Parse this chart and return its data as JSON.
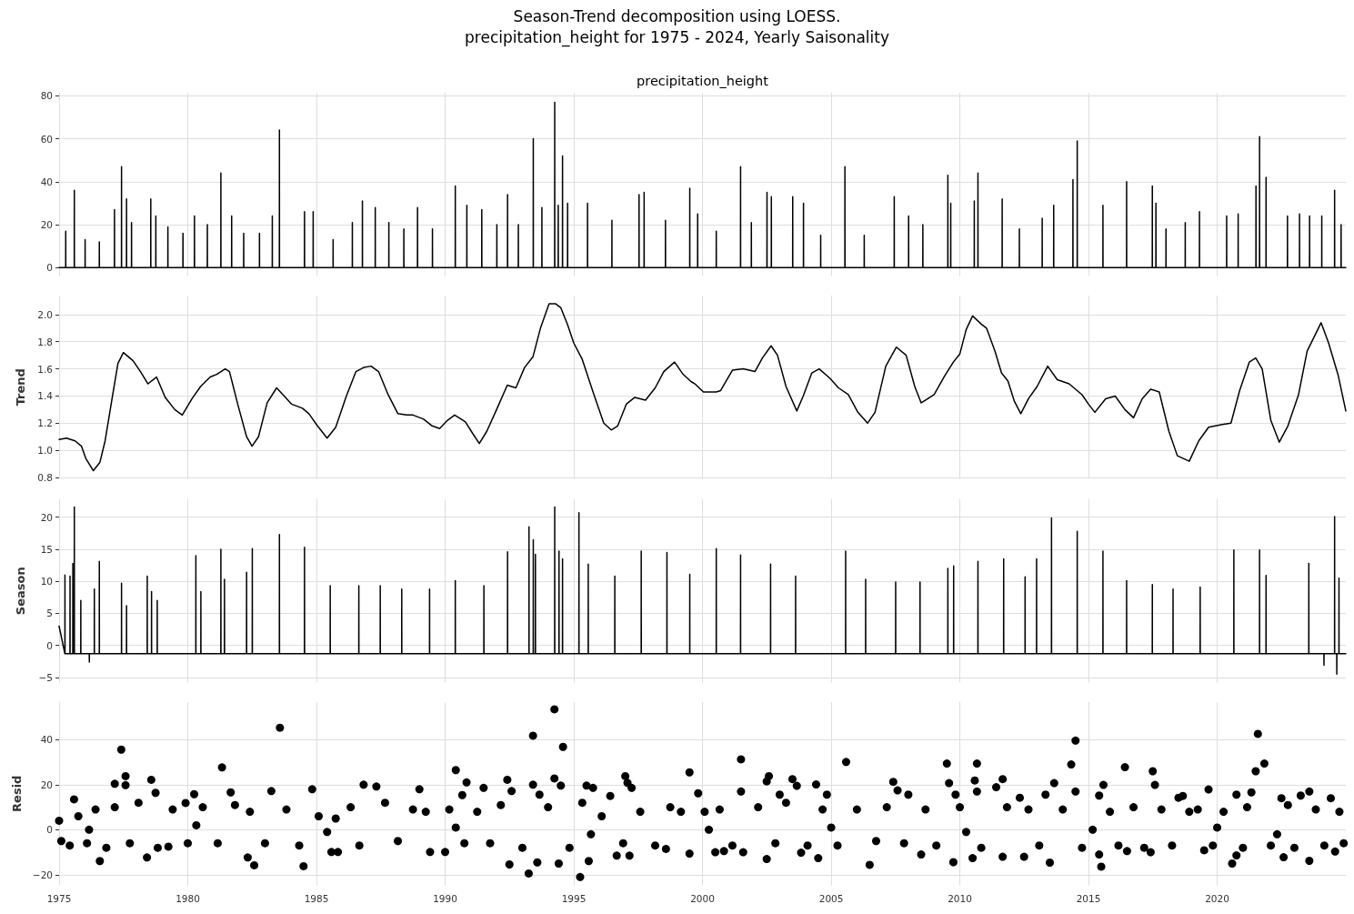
{
  "chart_data": [
    {
      "type": "line",
      "title": "Season-Trend decomposition using LOESS.",
      "subtitle": "precipitation_height for 1975 - 2024, Yearly Saisonality",
      "annotations": [
        "precipitation_height"
      ],
      "color": "#000000",
      "x": [
        "1975-01-01",
        "1975-04-04",
        "1975-04-05",
        "1975-04-06",
        "1975-08-04",
        "1975-08-05",
        "1975-08-06",
        "1976-01-04",
        "1976-01-05",
        "1976-01-06",
        "1976-07-24",
        "1976-07-25",
        "1976-07-26",
        "1977-02-24",
        "1977-02-25",
        "1977-02-26",
        "1977-06-04",
        "1977-06-05",
        "1977-06-06",
        "1977-08-14",
        "1977-08-15",
        "1977-08-16",
        "1977-10-24",
        "1977-10-25",
        "1977-10-26",
        "1978-07-24",
        "1978-07-25",
        "1978-07-26",
        "1978-10-04",
        "1978-10-05",
        "1978-10-06",
        "1979-03-24",
        "1979-03-25",
        "1979-03-26",
        "1979-10-24",
        "1979-10-25",
        "1979-10-26",
        "1980-04-04",
        "1980-04-05",
        "1980-04-06",
        "1980-10-04",
        "1980-10-05",
        "1980-10-06",
        "1981-04-14",
        "1981-04-15",
        "1981-04-16",
        "1981-09-14",
        "1981-09-15",
        "1981-09-16",
        "1982-03-04",
        "1982-03-05",
        "1982-03-06",
        "1982-10-14",
        "1982-10-15",
        "1982-10-16",
        "1983-04-14",
        "1983-04-15",
        "1983-04-16",
        "1983-07-24",
        "1983-07-25",
        "1983-07-26",
        "1984-07-14",
        "1984-07-15",
        "1984-07-16",
        "1984-11-14",
        "1984-11-15",
        "1984-11-16",
        "1985-08-24",
        "1985-08-25",
        "1985-08-26",
        "1986-05-24",
        "1986-05-25",
        "1986-05-26",
        "1986-10-14",
        "1986-10-15",
        "1986-10-16",
        "1987-04-14",
        "1987-04-15",
        "1987-04-16",
        "1987-10-24",
        "1987-10-25",
        "1987-10-26",
        "1988-05-24",
        "1988-05-25",
        "1988-05-26",
        "1988-12-04",
        "1988-12-05",
        "1988-12-06",
        "1989-07-04",
        "1989-07-05",
        "1989-07-06",
        "1990-05-24",
        "1990-05-25",
        "1990-05-26",
        "1990-11-04",
        "1990-11-05",
        "1990-11-06",
        "1991-06-04",
        "1991-06-05",
        "1991-06-06",
        "1992-01-04",
        "1992-01-05",
        "1992-01-06",
        "1992-06-04",
        "1992-06-05",
        "1992-06-06",
        "1992-11-04",
        "1992-11-05",
        "1992-11-06",
        "1993-06-04",
        "1993-06-05",
        "1993-06-06",
        "1993-10-04",
        "1993-10-05",
        "1993-10-06",
        "1994-04-04",
        "1994-04-05",
        "1994-04-06",
        "1994-05-24",
        "1994-05-25",
        "1994-05-26",
        "1994-07-24",
        "1994-07-25",
        "1994-07-26",
        "1994-10-04",
        "1994-10-05",
        "1994-10-06",
        "1995-07-14",
        "1995-07-15",
        "1995-07-16",
        "1996-06-24",
        "1996-06-25",
        "1996-06-26",
        "1997-07-14",
        "1997-07-15",
        "1997-07-16",
        "1997-09-24",
        "1997-09-25",
        "1997-09-26",
        "1998-07-24",
        "1998-07-25",
        "1998-07-26",
        "1999-07-04",
        "1999-07-05",
        "1999-07-06",
        "1999-10-24",
        "1999-10-25",
        "1999-10-26",
        "2000-07-14",
        "2000-07-15",
        "2000-07-16",
        "2001-06-24",
        "2001-06-25",
        "2001-06-26",
        "2001-11-24",
        "2001-11-25",
        "2001-11-26",
        "2002-07-04",
        "2002-07-05",
        "2002-07-06",
        "2002-09-04",
        "2002-09-05",
        "2002-09-06",
        "2003-07-04",
        "2003-07-05",
        "2003-07-06",
        "2003-12-04",
        "2003-12-05",
        "2003-12-06",
        "2004-08-04",
        "2004-08-05",
        "2004-08-06",
        "2005-07-14",
        "2005-07-15",
        "2005-07-16",
        "2006-04-14",
        "2006-04-15",
        "2006-04-16",
        "2007-06-14",
        "2007-06-15",
        "2007-06-16",
        "2008-01-04",
        "2008-01-05",
        "2008-01-06",
        "2008-07-24",
        "2008-07-25",
        "2008-07-26",
        "2009-07-14",
        "2009-07-15",
        "2009-07-16",
        "2009-08-24",
        "2009-08-25",
        "2009-08-26",
        "2010-07-24",
        "2010-07-25",
        "2010-07-26",
        "2010-09-14",
        "2010-09-15",
        "2010-09-16",
        "2011-08-24",
        "2011-08-25",
        "2011-08-26",
        "2012-04-24",
        "2012-04-25",
        "2012-04-26",
        "2013-03-14",
        "2013-03-15",
        "2013-03-16",
        "2013-08-24",
        "2013-08-25",
        "2013-08-26",
        "2014-05-24",
        "2014-05-25",
        "2014-05-26",
        "2014-07-24",
        "2014-07-25",
        "2014-07-26",
        "2015-07-24",
        "2015-07-25",
        "2015-07-26",
        "2016-06-24",
        "2016-06-25",
        "2016-06-26",
        "2017-06-24",
        "2017-06-25",
        "2017-06-26",
        "2017-08-14",
        "2017-08-15",
        "2017-08-16",
        "2018-01-04",
        "2018-01-05",
        "2018-01-06",
        "2018-10-04",
        "2018-10-05",
        "2018-10-06",
        "2019-04-24",
        "2019-04-25",
        "2019-04-26",
        "2020-05-14",
        "2020-05-15",
        "2020-05-16",
        "2020-10-24",
        "2020-10-25",
        "2020-10-26",
        "2021-07-04",
        "2021-07-05",
        "2021-07-06",
        "2021-08-24",
        "2021-08-25",
        "2021-08-26",
        "2021-11-24",
        "2021-11-25",
        "2021-11-26",
        "2022-09-24",
        "2022-09-25",
        "2022-09-26",
        "2023-03-14",
        "2023-03-15",
        "2023-03-16",
        "2023-08-04",
        "2023-08-05",
        "2023-08-06",
        "2024-01-24",
        "2024-01-25",
        "2024-01-26",
        "2024-07-24",
        "2024-07-25",
        "2024-07-26",
        "2024-10-24",
        "2024-10-25",
        "2024-10-26",
        "2024-12-31"
      ],
      "values": [
        0,
        0,
        17,
        0,
        0,
        36,
        0,
        0,
        13,
        0,
        0,
        12,
        0,
        0,
        27,
        0,
        0,
        47,
        0,
        0,
        32,
        0,
        0,
        21,
        0,
        0,
        32,
        0,
        0,
        24,
        0,
        0,
        19,
        0,
        0,
        16,
        0,
        0,
        24,
        0,
        0,
        20,
        0,
        0,
        44,
        0,
        0,
        24,
        0,
        0,
        16,
        0,
        0,
        16,
        0,
        0,
        24,
        0,
        0,
        64,
        0,
        0,
        26,
        0,
        0,
        26,
        0,
        0,
        13,
        0,
        0,
        21,
        0,
        0,
        31,
        0,
        0,
        28,
        0,
        0,
        21,
        0,
        0,
        18,
        0,
        0,
        28,
        0,
        0,
        18,
        0,
        0,
        38,
        0,
        0,
        29,
        0,
        0,
        27,
        0,
        0,
        20,
        0,
        0,
        34,
        0,
        0,
        20,
        0,
        0,
        60,
        0,
        0,
        28,
        0,
        0,
        77,
        0,
        0,
        29,
        0,
        0,
        52,
        0,
        0,
        30,
        0,
        0,
        30,
        0,
        0,
        22,
        0,
        0,
        34,
        0,
        0,
        35,
        0,
        0,
        22,
        0,
        0,
        37,
        0,
        0,
        25,
        0,
        0,
        17,
        0,
        0,
        47,
        0,
        0,
        21,
        0,
        0,
        35,
        0,
        0,
        33,
        0,
        0,
        33,
        0,
        0,
        30,
        0,
        0,
        15,
        0,
        0,
        47,
        0,
        0,
        15,
        0,
        0,
        33,
        0,
        0,
        24,
        0,
        0,
        20,
        0,
        0,
        43,
        0,
        0,
        30,
        0,
        0,
        31,
        0,
        0,
        44,
        0,
        0,
        32,
        0,
        0,
        18,
        0,
        0,
        23,
        0,
        0,
        29,
        0,
        0,
        41,
        0,
        0,
        59,
        0,
        0,
        29,
        0,
        0,
        40,
        0,
        0,
        38,
        0,
        0,
        30,
        0,
        0,
        18,
        0,
        0,
        21,
        0,
        0,
        26,
        0,
        0,
        24,
        0,
        0,
        25,
        0,
        0,
        38,
        0,
        0,
        61,
        0,
        0,
        42,
        0,
        0,
        24,
        0,
        0,
        25,
        0,
        0,
        24,
        0,
        0,
        24,
        0,
        0,
        36,
        0,
        0,
        20,
        0,
        0
      ],
      "xlim": [
        "1975-01-01",
        "2024-12-31"
      ],
      "xticks": [
        "1975",
        "1980",
        "1985",
        "1990",
        "1995",
        "2000",
        "2005",
        "2010",
        "2015",
        "2020"
      ],
      "ylim": [
        -3.9,
        81.4
      ],
      "yticks": [
        0,
        20,
        40,
        60,
        80
      ],
      "grid": true,
      "tick_labels": "y"
    },
    {
      "type": "line",
      "ylabel": "Trend",
      "color": "#000000",
      "x": [
        "1975-01-01",
        "1975-04-15",
        "1975-08-15",
        "1975-11-15",
        "1976-01-15",
        "1976-05-01",
        "1976-08-01",
        "1976-10-15",
        "1977-01-15",
        "1977-04-15",
        "1977-07-01",
        "1977-11-15",
        "1978-03-01",
        "1978-06-15",
        "1978-10-15",
        "1979-02-15",
        "1979-07-01",
        "1979-10-15",
        "1980-03-01",
        "1980-07-01",
        "1980-11-15",
        "1981-02-15",
        "1981-06-15",
        "1981-08-15",
        "1981-12-15",
        "1982-04-15",
        "1982-07-01",
        "1982-10-01",
        "1983-02-01",
        "1983-06-15",
        "1983-10-01",
        "1984-01-15",
        "1984-06-15",
        "1984-09-15",
        "1985-01-15",
        "1985-06-01",
        "1985-10-01",
        "1986-03-01",
        "1986-07-15",
        "1986-11-01",
        "1987-02-15",
        "1987-06-01",
        "1987-10-15",
        "1988-03-01",
        "1988-07-01",
        "1988-10-01",
        "1989-03-01",
        "1989-07-01",
        "1989-10-15",
        "1990-02-01",
        "1990-05-15",
        "1990-10-15",
        "1991-02-01",
        "1991-05-01",
        "1991-08-15",
        "1992-01-01",
        "1992-06-01",
        "1992-10-01",
        "1993-02-01",
        "1993-06-01",
        "1993-09-15",
        "1994-01-15",
        "1994-04-15",
        "1994-07-01",
        "1994-10-01",
        "1995-01-01",
        "1995-05-01",
        "1995-10-01",
        "1996-03-01",
        "1996-06-15",
        "1996-09-15",
        "1997-01-15",
        "1997-05-15",
        "1997-10-15",
        "1998-03-01",
        "1998-07-01",
        "1998-12-01",
        "1999-04-01",
        "1999-07-15",
        "1999-09-15",
        "2000-01-15",
        "2000-07-15",
        "2000-09-15",
        "2001-03-01",
        "2001-08-01",
        "2002-01-15",
        "2002-05-01",
        "2002-09-01",
        "2002-12-01",
        "2003-04-01",
        "2003-09-01",
        "2003-12-01",
        "2004-04-01",
        "2004-07-15",
        "2004-12-15",
        "2005-04-15",
        "2005-09-01",
        "2006-01-15",
        "2006-06-01",
        "2006-09-15",
        "2007-02-15",
        "2007-07-15",
        "2007-12-01",
        "2008-04-01",
        "2008-07-01",
        "2009-01-01",
        "2009-06-01",
        "2009-10-01",
        "2010-01-01",
        "2010-04-01",
        "2010-07-01",
        "2010-11-01",
        "2011-01-15",
        "2011-05-15",
        "2011-08-15",
        "2011-11-15",
        "2012-02-15",
        "2012-05-15",
        "2012-09-01",
        "2013-01-01",
        "2013-06-01",
        "2013-10-15",
        "2014-04-01",
        "2014-10-01",
        "2015-01-01",
        "2015-04-01",
        "2015-09-01",
        "2016-01-15",
        "2016-06-01",
        "2016-10-01",
        "2017-02-01",
        "2017-06-01",
        "2017-10-01",
        "2018-02-15",
        "2018-06-15",
        "2018-12-01",
        "2019-04-15",
        "2019-09-01",
        "2020-03-15",
        "2020-07-15",
        "2020-11-15",
        "2021-04-01",
        "2021-07-01",
        "2021-10-01",
        "2022-02-01",
        "2022-06-01",
        "2022-10-01",
        "2023-03-01",
        "2023-07-01",
        "2024-01-15",
        "2024-05-01",
        "2024-09-15",
        "2024-12-31"
      ],
      "values": [
        1.08,
        1.09,
        1.07,
        1.03,
        0.94,
        0.85,
        0.91,
        1.07,
        1.36,
        1.64,
        1.72,
        1.66,
        1.58,
        1.49,
        1.54,
        1.39,
        1.3,
        1.26,
        1.38,
        1.47,
        1.54,
        1.56,
        1.6,
        1.58,
        1.33,
        1.1,
        1.03,
        1.1,
        1.35,
        1.46,
        1.4,
        1.34,
        1.31,
        1.27,
        1.18,
        1.09,
        1.17,
        1.4,
        1.58,
        1.61,
        1.62,
        1.58,
        1.41,
        1.27,
        1.26,
        1.26,
        1.23,
        1.18,
        1.16,
        1.22,
        1.26,
        1.21,
        1.12,
        1.05,
        1.14,
        1.3,
        1.48,
        1.46,
        1.61,
        1.69,
        1.9,
        2.08,
        2.08,
        2.05,
        1.93,
        1.79,
        1.67,
        1.43,
        1.2,
        1.15,
        1.18,
        1.34,
        1.39,
        1.37,
        1.46,
        1.58,
        1.65,
        1.56,
        1.51,
        1.49,
        1.43,
        1.43,
        1.44,
        1.59,
        1.6,
        1.58,
        1.68,
        1.77,
        1.7,
        1.47,
        1.29,
        1.4,
        1.57,
        1.6,
        1.53,
        1.46,
        1.41,
        1.28,
        1.2,
        1.28,
        1.62,
        1.76,
        1.7,
        1.47,
        1.35,
        1.41,
        1.55,
        1.65,
        1.71,
        1.89,
        1.99,
        1.93,
        1.9,
        1.73,
        1.57,
        1.51,
        1.36,
        1.27,
        1.38,
        1.47,
        1.62,
        1.52,
        1.49,
        1.41,
        1.34,
        1.28,
        1.38,
        1.4,
        1.3,
        1.24,
        1.38,
        1.45,
        1.43,
        1.14,
        0.96,
        0.92,
        1.07,
        1.17,
        1.19,
        1.2,
        1.44,
        1.65,
        1.68,
        1.6,
        1.22,
        1.06,
        1.18,
        1.41,
        1.73,
        1.94,
        1.79,
        1.55,
        1.29
      ],
      "xlim": [
        "1975-01-01",
        "2024-12-31"
      ],
      "xticks": [
        "1975",
        "1980",
        "1985",
        "1990",
        "1995",
        "2000",
        "2005",
        "2010",
        "2015",
        "2020"
      ],
      "ylim": [
        0.79,
        2.14
      ],
      "yticks": [
        0.8,
        {
          "value": 1,
          "label": "1.0"
        },
        1.2,
        1.4,
        1.6,
        1.8,
        {
          "value": 2,
          "label": "2.0"
        }
      ],
      "grid": true,
      "tick_labels": "y"
    },
    {
      "type": "line",
      "ylabel": "Season",
      "color": "#000000",
      "x": [
        "1975-01-01",
        "1975-03-24",
        "1975-03-25",
        "1975-03-26",
        "1975-06-04",
        "1975-06-05",
        "1975-06-06",
        "1975-07-14",
        "1975-07-15",
        "1975-07-16",
        "1975-08-04",
        "1975-08-05",
        "1975-08-06",
        "1975-11-04",
        "1975-11-05",
        "1975-11-06",
        "1976-03-04",
        "1976-03-05",
        "1976-03-06",
        "1976-05-14",
        "1976-05-15",
        "1976-05-16",
        "1976-07-24",
        "1976-07-25",
        "1976-07-26",
        "1977-06-04",
        "1977-06-05",
        "1977-06-06",
        "1977-08-14",
        "1977-08-15",
        "1977-08-16",
        "1978-06-04",
        "1978-06-05",
        "1978-06-06",
        "1978-08-04",
        "1978-08-05",
        "1978-08-06",
        "1978-10-24",
        "1978-10-25",
        "1978-10-26",
        "1980-04-24",
        "1980-04-25",
        "1980-04-26",
        "1980-07-04",
        "1980-07-05",
        "1980-07-06",
        "1981-04-14",
        "1981-04-15",
        "1981-04-16",
        "1981-06-04",
        "1981-06-05",
        "1981-06-06",
        "1982-04-14",
        "1982-04-15",
        "1982-04-16",
        "1982-07-04",
        "1982-07-05",
        "1982-07-06",
        "1983-07-24",
        "1983-07-25",
        "1983-07-26",
        "1984-07-14",
        "1984-07-15",
        "1984-07-16",
        "1985-07-14",
        "1985-07-15",
        "1985-07-16",
        "1986-08-24",
        "1986-08-25",
        "1986-08-26",
        "1987-06-24",
        "1987-06-25",
        "1987-06-26",
        "1988-04-24",
        "1988-04-25",
        "1988-04-26",
        "1989-05-24",
        "1989-05-25",
        "1989-05-26",
        "1990-05-24",
        "1990-05-25",
        "1990-05-26",
        "1991-07-04",
        "1991-07-05",
        "1991-07-06",
        "1992-06-04",
        "1992-06-05",
        "1992-06-06",
        "1993-04-04",
        "1993-04-05",
        "1993-04-06",
        "1993-06-04",
        "1993-06-05",
        "1993-06-06",
        "1993-07-04",
        "1993-07-05",
        "1993-07-06",
        "1994-04-04",
        "1994-04-05",
        "1994-04-06",
        "1994-06-04",
        "1994-06-05",
        "1994-06-06",
        "1994-07-24",
        "1994-07-25",
        "1994-07-26",
        "1995-03-14",
        "1995-03-15",
        "1995-03-16",
        "1995-07-24",
        "1995-07-25",
        "1995-07-26",
        "1996-08-04",
        "1996-08-05",
        "1996-08-06",
        "1997-08-14",
        "1997-08-15",
        "1997-08-16",
        "1998-08-14",
        "1998-08-15",
        "1998-08-16",
        "1999-07-04",
        "1999-07-05",
        "1999-07-06",
        "2000-07-14",
        "2000-07-15",
        "2000-07-16",
        "2001-06-24",
        "2001-06-25",
        "2001-06-26",
        "2002-08-24",
        "2002-08-25",
        "2002-08-26",
        "2003-08-14",
        "2003-08-15",
        "2003-08-16",
        "2005-07-24",
        "2005-07-25",
        "2005-07-26",
        "2006-05-04",
        "2006-05-05",
        "2006-05-06",
        "2007-07-04",
        "2007-07-05",
        "2007-07-06",
        "2008-06-14",
        "2008-06-15",
        "2008-06-16",
        "2009-07-14",
        "2009-07-15",
        "2009-07-16",
        "2009-10-04",
        "2009-10-05",
        "2009-10-06",
        "2010-09-14",
        "2010-09-15",
        "2010-09-16",
        "2011-09-14",
        "2011-09-15",
        "2011-09-16",
        "2012-07-14",
        "2012-07-15",
        "2012-07-16",
        "2012-12-24",
        "2012-12-25",
        "2012-12-26",
        "2013-07-24",
        "2013-07-25",
        "2013-07-26",
        "2014-07-24",
        "2014-07-25",
        "2014-07-26",
        "2015-07-24",
        "2015-07-25",
        "2015-07-26",
        "2016-06-24",
        "2016-06-25",
        "2016-06-26",
        "2017-06-24",
        "2017-06-25",
        "2017-06-26",
        "2018-04-14",
        "2018-04-15",
        "2018-04-16",
        "2019-05-04",
        "2019-05-05",
        "2019-05-06",
        "2020-08-24",
        "2020-08-25",
        "2020-08-26",
        "2021-08-24",
        "2021-08-25",
        "2021-08-26",
        "2021-11-24",
        "2021-11-25",
        "2021-11-26",
        "2023-07-24",
        "2023-07-25",
        "2023-07-26",
        "2024-02-24",
        "2024-02-25",
        "2024-02-26",
        "2024-07-24",
        "2024-07-25",
        "2024-07-26",
        "2024-08-24",
        "2024-08-25",
        "2024-08-26",
        "2024-09-24",
        "2024-09-25",
        "2024-09-26",
        "2024-12-31"
      ],
      "values": [
        3,
        -1.3,
        11,
        -1.3,
        -1.3,
        10.8,
        -1.3,
        -1.3,
        12.8,
        -1.3,
        -1.3,
        21.6,
        -1.3,
        -1.3,
        7,
        -1.3,
        -1.3,
        -2.6,
        -1.3,
        -1.3,
        8.8,
        -1.3,
        -1.3,
        13.1,
        -1.3,
        -1.3,
        9.7,
        -1.3,
        -1.3,
        6.2,
        -1.3,
        -1.3,
        10.8,
        -1.3,
        -1.3,
        8.4,
        -1.3,
        -1.3,
        7,
        -1.3,
        -1.3,
        14,
        -1.3,
        -1.3,
        8.4,
        -1.3,
        -1.3,
        15,
        -1.3,
        -1.3,
        10.3,
        -1.3,
        -1.3,
        11.4,
        -1.3,
        -1.3,
        15.1,
        -1.3,
        -1.3,
        17.3,
        -1.3,
        -1.3,
        15.3,
        -1.3,
        -1.3,
        9.3,
        -1.3,
        -1.3,
        9.3,
        -1.3,
        -1.3,
        9.3,
        -1.3,
        -1.3,
        8.8,
        -1.3,
        -1.3,
        8.8,
        -1.3,
        -1.3,
        10.1,
        -1.3,
        -1.3,
        9.3,
        -1.3,
        -1.3,
        14.6,
        -1.3,
        -1.3,
        18.5,
        -1.3,
        -1.3,
        16.5,
        -1.3,
        -1.3,
        14.2,
        -1.3,
        -1.3,
        21.6,
        -1.3,
        -1.3,
        14.7,
        -1.3,
        -1.3,
        13.5,
        -1.3,
        -1.3,
        20.7,
        -1.3,
        -1.3,
        12.7,
        -1.3,
        -1.3,
        10.8,
        -1.3,
        -1.3,
        14.7,
        -1.3,
        -1.3,
        14.5,
        -1.3,
        -1.3,
        11.1,
        -1.3,
        -1.3,
        15.1,
        -1.3,
        -1.3,
        14.1,
        -1.3,
        -1.3,
        12.7,
        -1.3,
        -1.3,
        10.8,
        -1.3,
        -1.3,
        14.7,
        -1.3,
        -1.3,
        10.3,
        -1.3,
        -1.3,
        9.9,
        -1.3,
        -1.3,
        9.9,
        -1.3,
        -1.3,
        12,
        -1.3,
        -1.3,
        12.4,
        -1.3,
        -1.3,
        13.1,
        -1.3,
        -1.3,
        13.5,
        -1.3,
        -1.3,
        10.7,
        -1.3,
        -1.3,
        13.5,
        -1.3,
        -1.3,
        19.9,
        -1.3,
        -1.3,
        17.8,
        -1.3,
        -1.3,
        14.7,
        -1.3,
        -1.3,
        10.1,
        -1.3,
        -1.3,
        9.5,
        -1.3,
        -1.3,
        8.8,
        -1.3,
        -1.3,
        9.1,
        -1.3,
        -1.3,
        14.9,
        -1.3,
        -1.3,
        14.9,
        -1.3,
        -1.3,
        10.9,
        -1.3,
        -1.3,
        12.8,
        -1.3,
        -1.3,
        -3.1,
        -1.3,
        -1.3,
        20.1,
        -1.3,
        -1.3,
        -4.5,
        -1.3,
        -1.3,
        10.5,
        -1.3,
        -1.3
      ],
      "xlim": [
        "1975-01-01",
        "2024-12-31"
      ],
      "xticks": [
        "1975",
        "1980",
        "1985",
        "1990",
        "1995",
        "2000",
        "2005",
        "2010",
        "2015",
        "2020"
      ],
      "ylim": [
        -5.8,
        22.8
      ],
      "yticks": [
        {
          "value": -5,
          "label": "−5"
        },
        0,
        5,
        10,
        15,
        20
      ],
      "grid": true,
      "tick_labels": "y"
    },
    {
      "type": "scatter",
      "ylabel": "Resid",
      "color": "#000000",
      "marker": "circle",
      "x": [
        "1975-01",
        "1975-02",
        "1975-06",
        "1975-08",
        "1975-10",
        "1976-02",
        "1976-03",
        "1976-06",
        "1976-08",
        "1976-11",
        "1977-03",
        "1977-03",
        "1977-06",
        "1977-08",
        "1977-08",
        "1977-10",
        "1978-02",
        "1978-06",
        "1978-08",
        "1978-10",
        "1978-11",
        "1979-04",
        "1979-06",
        "1979-12",
        "1980-01",
        "1980-04",
        "1980-05",
        "1980-08",
        "1981-03",
        "1981-05",
        "1981-09",
        "1981-11",
        "1982-05",
        "1982-06",
        "1982-08",
        "1983-01",
        "1983-04",
        "1983-08",
        "1983-11",
        "1984-05",
        "1984-07",
        "1984-11",
        "1985-02",
        "1985-06",
        "1985-08",
        "1985-10",
        "1985-11",
        "1986-05",
        "1986-09",
        "1986-11",
        "1987-05",
        "1987-09",
        "1988-03",
        "1988-10",
        "1989-01",
        "1989-04",
        "1989-06",
        "1990-01",
        "1990-03",
        "1990-06",
        "1990-06",
        "1990-09",
        "1990-10",
        "1990-11",
        "1991-04",
        "1991-07",
        "1991-10",
        "1992-03",
        "1992-06",
        "1992-07",
        "1992-08",
        "1993-01",
        "1993-04",
        "1993-06",
        "1993-06",
        "1993-08",
        "1993-09",
        "1994-01",
        "1994-04",
        "1994-04",
        "1994-06",
        "1994-07",
        "1994-08",
        "1994-11",
        "1995-04",
        "1995-05",
        "1995-07",
        "1995-08",
        "1995-09",
        "1995-10",
        "1996-02",
        "1996-06",
        "1996-09",
        "1996-12",
        "1997-01",
        "1997-02",
        "1997-03",
        "1997-04",
        "1997-08",
        "1998-03",
        "1998-08",
        "1998-10",
        "1999-03",
        "1999-07",
        "1999-07",
        "1999-11",
        "2000-02",
        "2000-04",
        "2000-07",
        "2000-09",
        "2000-11",
        "2001-03",
        "2001-07",
        "2001-07",
        "2001-08",
        "2002-03",
        "2002-07",
        "2002-07",
        "2002-08",
        "2002-11",
        "2003-01",
        "2003-04",
        "2003-07",
        "2003-09",
        "2003-11",
        "2004-02",
        "2004-06",
        "2004-07",
        "2004-09",
        "2004-11",
        "2005-01",
        "2005-04",
        "2005-08",
        "2006-01",
        "2006-07",
        "2006-10",
        "2007-03",
        "2007-06",
        "2007-08",
        "2007-11",
        "2008-01",
        "2008-07",
        "2008-09",
        "2009-02",
        "2009-07",
        "2009-08",
        "2009-10",
        "2009-11",
        "2010-01",
        "2010-04",
        "2010-07",
        "2010-08",
        "2010-09",
        "2010-09",
        "2010-11",
        "2011-06",
        "2011-09",
        "2011-09",
        "2011-11",
        "2012-05",
        "2012-07",
        "2012-09",
        "2013-02",
        "2013-05",
        "2013-07",
        "2013-09",
        "2014-01",
        "2014-05",
        "2014-07",
        "2014-07",
        "2014-10",
        "2015-03",
        "2015-06",
        "2015-06",
        "2015-07",
        "2015-08",
        "2015-11",
        "2016-03",
        "2016-06",
        "2016-07",
        "2016-10",
        "2017-03",
        "2017-06",
        "2017-07",
        "2017-08",
        "2017-11",
        "2018-04",
        "2018-07",
        "2018-09",
        "2018-12",
        "2019-04",
        "2019-07",
        "2019-09",
        "2019-11",
        "2020-01",
        "2020-04",
        "2020-08",
        "2020-10",
        "2020-10",
        "2021-01",
        "2021-03",
        "2021-05",
        "2021-07",
        "2021-08",
        "2021-11",
        "2022-02",
        "2022-05",
        "2022-07",
        "2022-08",
        "2022-10",
        "2023-01",
        "2023-04",
        "2023-08",
        "2023-08",
        "2023-11",
        "2024-03",
        "2024-06",
        "2024-08",
        "2024-10",
        "2024-12"
      ],
      "values": [
        4,
        -5,
        -7,
        13.5,
        6,
        -6,
        0,
        9,
        -13.9,
        -8,
        20.4,
        10,
        35.6,
        23.8,
        19.8,
        -6,
        12,
        -12.3,
        22.2,
        16.4,
        -8,
        -7.5,
        9,
        11.9,
        -6,
        15.8,
        2,
        10,
        -6,
        27.7,
        16.6,
        11,
        -12.3,
        8,
        -15.8,
        -6,
        17.2,
        45.3,
        9,
        -7,
        -16.2,
        18,
        6,
        -1,
        -9.9,
        5,
        -9.9,
        10,
        -7,
        20,
        19.2,
        12,
        -5,
        9,
        18,
        8,
        -9.9,
        -9.9,
        9,
        26.5,
        1,
        15.4,
        -6,
        21,
        8,
        18.6,
        -6,
        11,
        22.2,
        -15.4,
        17.2,
        -8,
        -19.4,
        41.8,
        20,
        -14.5,
        15.6,
        10,
        22.8,
        53.5,
        -15,
        19.6,
        36.8,
        -8,
        -21,
        12,
        19.6,
        -13.9,
        -2,
        18.6,
        6,
        15,
        -11.5,
        -6,
        23.8,
        20.8,
        -11.5,
        18.6,
        8,
        -7,
        -8.5,
        10,
        8,
        25.5,
        -10.6,
        16.2,
        8,
        0,
        -10,
        9,
        -9.5,
        -7,
        31.3,
        17,
        -10,
        10,
        -13,
        21.5,
        23.8,
        -6,
        15.6,
        12,
        22.5,
        19.5,
        -10.2,
        -7,
        20.1,
        -12.6,
        9,
        15.6,
        1,
        -7,
        30.1,
        9,
        -15.6,
        -5,
        10,
        21.3,
        17.5,
        -6,
        15.6,
        -11,
        9,
        -7,
        29.4,
        20.7,
        -14.4,
        15.6,
        10,
        -1,
        -12.6,
        21.9,
        29.4,
        17,
        -8,
        18.9,
        22.5,
        -12,
        10,
        14.2,
        -12,
        9,
        -7,
        15.6,
        -14.6,
        20.7,
        9,
        29,
        17,
        39.6,
        -8,
        0,
        -11,
        15.2,
        -16.4,
        19.9,
        8,
        -7,
        27.8,
        -9.5,
        10,
        -8,
        -10,
        26,
        19.9,
        9,
        -7,
        14.2,
        15,
        8,
        9,
        -9.1,
        17.9,
        -7,
        1,
        8,
        -15,
        -11.4,
        15.6,
        -8,
        10,
        16.6,
        26,
        42.6,
        29.4,
        -7,
        -2,
        14,
        -12.2,
        11,
        -8,
        15.2,
        -13.8,
        17,
        9,
        -7,
        14,
        -9.7,
        8,
        -6
      ],
      "xlim": [
        "1975-01-01",
        "2024-12-31"
      ],
      "xticks": [
        "1975",
        "1980",
        "1985",
        "1990",
        "1995",
        "2000",
        "2005",
        "2010",
        "2015",
        "2020"
      ],
      "ylim": [
        -24.7,
        56.7
      ],
      "yticks": [
        {
          "value": -20,
          "label": "−20"
        },
        0,
        20,
        40
      ],
      "grid": true
    }
  ]
}
